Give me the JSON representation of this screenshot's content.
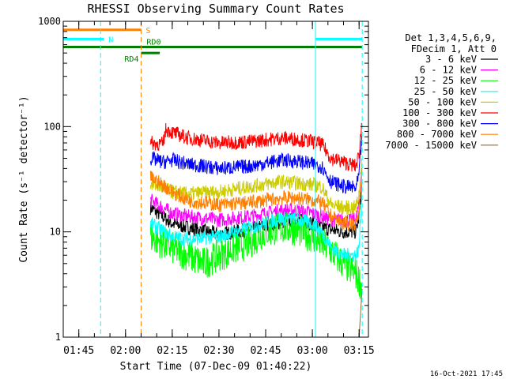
{
  "chart_data": {
    "type": "line",
    "title": "RHESSI Observing Summary Count Rates",
    "xlabel": "Start Time (07-Dec-09 01:40:22)",
    "ylabel": "Count Rate (s⁻¹ detector⁻¹)",
    "y_scale": "log",
    "ylim": [
      1,
      1000
    ],
    "y_ticks": [
      {
        "value": 1,
        "label": "1"
      },
      {
        "value": 10,
        "label": "10"
      },
      {
        "value": 100,
        "label": "100"
      },
      {
        "value": 1000,
        "label": "1000"
      }
    ],
    "xlim": [
      "01:40",
      "03:18"
    ],
    "x_ticks": [
      {
        "value": "01:45",
        "label": "01:45"
      },
      {
        "value": "02:00",
        "label": "02:00"
      },
      {
        "value": "02:15",
        "label": "02:15"
      },
      {
        "value": "02:30",
        "label": "02:30"
      },
      {
        "value": "02:45",
        "label": "02:45"
      },
      {
        "value": "03:00",
        "label": "03:00"
      },
      {
        "value": "03:15",
        "label": "03:15"
      }
    ],
    "legend_header": [
      "Det 1,3,4,5,6,9,",
      "FDecim 1, Att 0"
    ],
    "legend_position": "right",
    "series": [
      {
        "name": "3 - 6 keV",
        "color": "#000000",
        "x": [
          "02:08",
          "02:15",
          "02:20",
          "02:30",
          "02:40",
          "02:50",
          "02:55",
          "03:00",
          "03:03",
          "03:06",
          "03:10",
          "03:14",
          "03:15",
          "03:16"
        ],
        "y": [
          17,
          12,
          11,
          9.5,
          10.5,
          12.5,
          13,
          12,
          11,
          10.5,
          10,
          10,
          14,
          30
        ]
      },
      {
        "name": "6 - 12 keV",
        "color": "#ff00ff",
        "x": [
          "02:08",
          "02:15",
          "02:20",
          "02:30",
          "02:40",
          "02:50",
          "02:55",
          "03:00",
          "03:03",
          "03:06",
          "03:10",
          "03:14",
          "03:15",
          "03:16"
        ],
        "y": [
          20,
          15,
          14,
          13,
          14,
          16,
          16,
          15,
          14,
          13,
          13,
          13,
          18,
          40
        ]
      },
      {
        "name": "12 - 25 keV",
        "color": "#00ff00",
        "x": [
          "02:08",
          "02:15",
          "02:20",
          "02:25",
          "02:30",
          "02:40",
          "02:45",
          "02:50",
          "02:55",
          "03:00",
          "03:05",
          "03:10",
          "03:14",
          "03:16"
        ],
        "y": [
          9,
          7,
          6,
          5,
          6,
          8,
          10,
          11,
          10.5,
          9,
          7,
          5,
          4,
          3
        ]
      },
      {
        "name": "25 - 50 keV",
        "color": "#00ffff",
        "x": [
          "02:08",
          "02:15",
          "02:20",
          "02:30",
          "02:40",
          "02:50",
          "02:55",
          "03:00",
          "03:03",
          "03:06",
          "03:10",
          "03:14",
          "03:15",
          "03:16"
        ],
        "y": [
          12,
          9,
          8.5,
          9,
          11,
          13.5,
          13,
          12,
          10,
          7,
          6,
          6,
          7,
          30
        ]
      },
      {
        "name": "50 - 100 keV",
        "color": "#cccc00",
        "x": [
          "02:08",
          "02:12",
          "02:15",
          "02:20",
          "02:30",
          "02:40",
          "02:50",
          "02:55",
          "03:00",
          "03:03",
          "03:06",
          "03:10",
          "03:14",
          "03:15",
          "03:16"
        ],
        "y": [
          29,
          26,
          24,
          23,
          24,
          27,
          30,
          29,
          28,
          27,
          18,
          17,
          17,
          23,
          60
        ]
      },
      {
        "name": "100 - 300 keV",
        "color": "#ff0000",
        "x": [
          "02:08",
          "02:12",
          "02:13",
          "02:15",
          "02:20",
          "02:30",
          "02:40",
          "02:50",
          "02:55",
          "03:00",
          "03:03",
          "03:06",
          "03:10",
          "03:14",
          "03:15",
          "03:16"
        ],
        "y": [
          70,
          68,
          95,
          88,
          78,
          70,
          72,
          78,
          76,
          72,
          68,
          50,
          46,
          42,
          55,
          120
        ]
      },
      {
        "name": "300 - 800 keV",
        "color": "#0000ff",
        "x": [
          "02:08",
          "02:12",
          "02:15",
          "02:20",
          "02:30",
          "02:40",
          "02:50",
          "02:55",
          "03:00",
          "03:03",
          "03:06",
          "03:10",
          "03:14",
          "03:15",
          "03:16"
        ],
        "y": [
          50,
          46,
          48,
          44,
          40,
          42,
          48,
          47,
          44,
          42,
          30,
          27,
          26,
          35,
          90
        ]
      },
      {
        "name": "800 - 7000 keV",
        "color": "#ff8000",
        "x": [
          "02:08",
          "02:12",
          "02:15",
          "02:20",
          "02:30",
          "02:40",
          "02:50",
          "02:55",
          "03:00",
          "03:03",
          "03:06",
          "03:10",
          "03:14",
          "03:15",
          "03:16"
        ],
        "y": [
          33,
          28,
          24,
          20,
          18,
          19,
          21,
          21,
          20,
          19,
          14,
          12,
          12,
          16,
          45
        ]
      },
      {
        "name": "7000 - 15000 keV",
        "color": "#996633",
        "x": [
          "03:15",
          "03:16"
        ],
        "y": [
          1,
          3
        ]
      }
    ],
    "mode_bars": [
      {
        "label": "S",
        "color": "#ff8000",
        "x_start": "01:40",
        "x_end": "02:05",
        "value": 830
      },
      {
        "label": "N",
        "color": "#00ffff",
        "x_start": "01:40",
        "x_end": "01:53",
        "value": 680
      },
      {
        "label": "N",
        "color": "#00ffff",
        "x_start": "03:01",
        "x_end": "03:16",
        "value": 680
      },
      {
        "label": "RD0",
        "color": "#008000",
        "x_start": "01:40",
        "x_end": "03:16",
        "value": 570
      },
      {
        "label": "RD4",
        "color": "#008000",
        "x_start": "02:05",
        "x_end": "02:11",
        "value": 500
      }
    ],
    "vlines": [
      {
        "x": "01:40",
        "color": "#00ffff",
        "style": "solid"
      },
      {
        "x": "01:52",
        "color": "#00ffff",
        "style": "dashed"
      },
      {
        "x": "02:05",
        "color": "#ff8000",
        "style": "dashed"
      },
      {
        "x": "03:01",
        "color": "#00ffff",
        "style": "solid"
      },
      {
        "x": "03:16",
        "color": "#00ffff",
        "style": "dashed"
      }
    ],
    "grid": false
  },
  "footer_date": "16-Oct-2021 17:45"
}
